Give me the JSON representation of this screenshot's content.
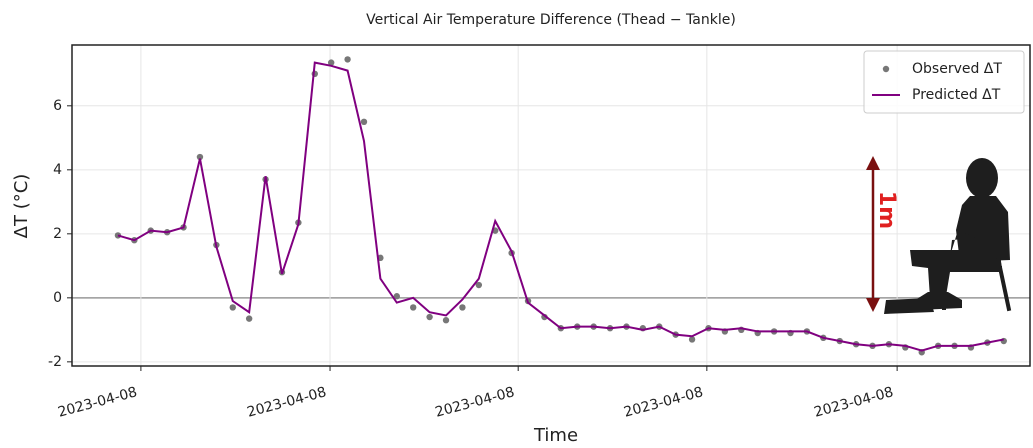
{
  "chart_data": {
    "type": "line",
    "title": "Vertical Air Temperature Difference (Thead − Tankle)",
    "xlabel": "Time",
    "ylabel": "ΔT (°C)",
    "annotation": "1m",
    "legend": "upper right",
    "grid": true,
    "x": [
      0,
      1,
      2,
      3,
      4,
      5,
      6,
      7,
      8,
      9,
      10,
      11,
      12,
      13,
      14,
      15,
      16,
      17,
      18,
      19,
      20,
      21,
      22,
      23,
      24,
      25,
      26,
      27,
      28,
      29,
      30,
      31,
      32,
      33,
      34,
      35,
      36,
      37,
      38,
      39,
      40,
      41,
      42,
      43,
      44,
      45,
      46,
      47,
      48,
      49,
      50,
      51,
      52,
      53,
      54
    ],
    "xlim": [
      -2.8,
      55.6
    ],
    "xticks": [
      {
        "value": 1.4,
        "label": "2023-04-08"
      },
      {
        "value": 12.93,
        "label": "2023-04-08"
      },
      {
        "value": 24.4,
        "label": "2023-04-08"
      },
      {
        "value": 35.9,
        "label": "2023-04-08"
      },
      {
        "value": 47.5,
        "label": "2023-04-08"
      }
    ],
    "ylim": [
      -2.13,
      7.9
    ],
    "yticks": [
      -2,
      0,
      2,
      4,
      6
    ],
    "series": [
      {
        "name": "Observed ΔT",
        "kind": "scatter",
        "color": "#777777",
        "values": [
          1.95,
          1.8,
          2.1,
          2.05,
          2.2,
          4.4,
          1.65,
          -0.3,
          -0.65,
          3.7,
          0.8,
          2.35,
          7.0,
          7.35,
          7.45,
          5.5,
          1.25,
          0.05,
          -0.3,
          -0.6,
          -0.7,
          -0.3,
          0.4,
          2.1,
          1.4,
          -0.1,
          -0.6,
          -0.95,
          -0.9,
          -0.9,
          -0.95,
          -0.9,
          -0.95,
          -0.9,
          -1.15,
          -1.3,
          -0.95,
          -1.05,
          -1.0,
          -1.1,
          -1.05,
          -1.1,
          -1.05,
          -1.25,
          -1.35,
          -1.45,
          -1.5,
          -1.45,
          -1.55,
          -1.7,
          -1.5,
          -1.5,
          -1.55,
          -1.4,
          -1.35
        ]
      },
      {
        "name": "Predicted ΔT",
        "kind": "line",
        "color": "#800080",
        "values": [
          1.95,
          1.8,
          2.1,
          2.05,
          2.2,
          4.35,
          1.6,
          -0.1,
          -0.45,
          3.8,
          0.75,
          2.3,
          7.35,
          7.25,
          7.1,
          4.9,
          0.6,
          -0.15,
          0.0,
          -0.45,
          -0.55,
          -0.05,
          0.6,
          2.4,
          1.45,
          -0.15,
          -0.55,
          -0.95,
          -0.9,
          -0.9,
          -0.95,
          -0.9,
          -1.0,
          -0.9,
          -1.15,
          -1.2,
          -0.95,
          -1.0,
          -0.95,
          -1.05,
          -1.05,
          -1.05,
          -1.05,
          -1.25,
          -1.35,
          -1.45,
          -1.5,
          -1.45,
          -1.5,
          -1.65,
          -1.5,
          -1.5,
          -1.5,
          -1.4,
          -1.3
        ]
      }
    ]
  }
}
